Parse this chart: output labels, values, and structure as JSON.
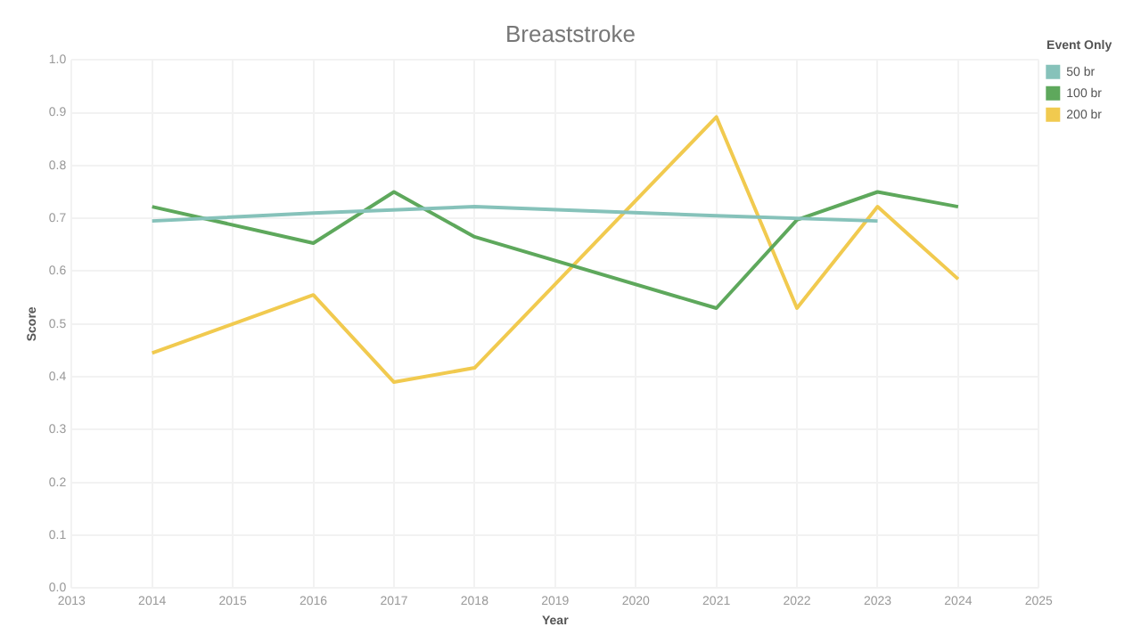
{
  "chart_data": {
    "type": "line",
    "title": "Breaststroke",
    "xlabel": "Year",
    "ylabel": "Score",
    "legend_title": "Event Only",
    "xlim": [
      2013,
      2025
    ],
    "xticks": [
      2013,
      2014,
      2015,
      2016,
      2017,
      2018,
      2019,
      2020,
      2021,
      2022,
      2023,
      2024,
      2025
    ],
    "ylim": [
      0,
      1
    ],
    "yticks": [
      {
        "value": 0,
        "label": "0.0"
      },
      0.1,
      0.2,
      0.3,
      0.4,
      0.5,
      0.6,
      0.7,
      0.8,
      0.9,
      {
        "value": 1,
        "label": "1.0"
      }
    ],
    "grid": true,
    "legend": "right",
    "marker": "none",
    "line_style": "solid",
    "series": [
      {
        "name": "50 br",
        "color": "#86c2ba",
        "x": [
          2014,
          2016,
          2018,
          2021,
          2023
        ],
        "values": [
          0.695,
          0.71,
          0.722,
          0.705,
          0.695
        ]
      },
      {
        "name": "100 br",
        "color": "#5ea85c",
        "x": [
          2014,
          2016,
          2017,
          2018,
          2021,
          2022,
          2023,
          2024
        ],
        "values": [
          0.722,
          0.653,
          0.75,
          0.665,
          0.53,
          0.697,
          0.75,
          0.722
        ]
      },
      {
        "name": "200 br",
        "color": "#f1ca4f",
        "x": [
          2014,
          2016,
          2017,
          2018,
          2021,
          2022,
          2023,
          2024
        ],
        "values": [
          0.445,
          0.555,
          0.39,
          0.417,
          0.892,
          0.53,
          0.722,
          0.585
        ]
      }
    ]
  }
}
